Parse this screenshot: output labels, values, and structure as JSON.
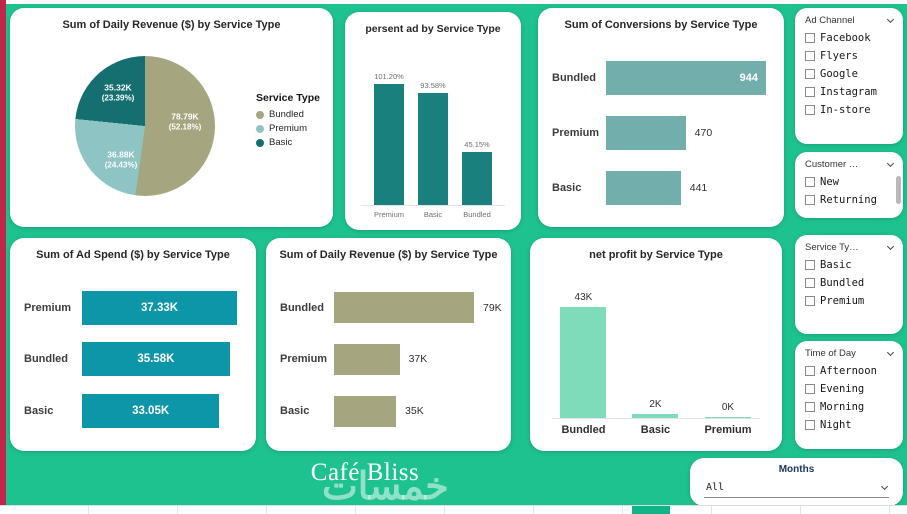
{
  "theme": {
    "background": "#1ec28e",
    "card_bg": "#ffffff",
    "accent_red_strip": "#c02647",
    "sheet_tab_green": "#10b487"
  },
  "chart_data": [
    {
      "id": "daily-revenue-pie",
      "type": "pie",
      "title": "Sum of Daily Revenue ($) by Service Type",
      "legend_title": "Service Type",
      "legend_position": "right",
      "categories": [
        "Bundled",
        "Premium",
        "Basic"
      ],
      "values": [
        78.79,
        36.88,
        35.32
      ],
      "unit": "K",
      "labels": [
        "78.79K",
        "36.88K",
        "35.32K"
      ],
      "pcts": [
        "(52.18%)",
        "(24.43%)",
        "(23.39%)"
      ],
      "pct_values": [
        52.18,
        24.43,
        23.39
      ],
      "colors": [
        "#a5a580",
        "#8ec4c4",
        "#156f71"
      ]
    },
    {
      "id": "persent-ad-bar",
      "type": "bar",
      "orientation": "vertical",
      "title": "persent ad by Service Type",
      "categories": [
        "Premium",
        "Basic",
        "Bundled"
      ],
      "values": [
        101.2,
        93.58,
        45.15
      ],
      "unit": "%",
      "labels": [
        "101.20%",
        "93.58%",
        "45.15%"
      ],
      "color": "#1a807d",
      "ylim": [
        0,
        101.2
      ]
    },
    {
      "id": "conversions-hbar",
      "type": "bar",
      "orientation": "horizontal",
      "title": "Sum of Conversions by Service Type",
      "categories": [
        "Bundled",
        "Premium",
        "Basic"
      ],
      "values": [
        944,
        470,
        441
      ],
      "labels": [
        "944",
        "470",
        "441"
      ],
      "color": "#72aeab",
      "xlim": [
        0,
        944
      ]
    },
    {
      "id": "ad-spend-hbar",
      "type": "bar",
      "orientation": "horizontal",
      "title": "Sum of Ad Spend ($) by Service Type",
      "categories": [
        "Premium",
        "Bundled",
        "Basic"
      ],
      "values": [
        37.33,
        35.58,
        33.05
      ],
      "unit": "K",
      "labels": [
        "37.33K",
        "35.58K",
        "33.05K"
      ],
      "color": "#0d95a8",
      "xlim": [
        0,
        37.33
      ]
    },
    {
      "id": "daily-revenue-hbar",
      "type": "bar",
      "orientation": "horizontal",
      "title": "Sum of Daily Revenue ($) by Service Type",
      "categories": [
        "Bundled",
        "Premium",
        "Basic"
      ],
      "values": [
        79,
        37,
        35
      ],
      "unit": "K",
      "labels": [
        "79K",
        "37K",
        "35K"
      ],
      "color": "#a5a580",
      "xlim": [
        0,
        79
      ]
    },
    {
      "id": "net-profit-bar",
      "type": "bar",
      "orientation": "vertical",
      "title": "net profit by Service Type",
      "categories": [
        "Bundled",
        "Basic",
        "Premium"
      ],
      "values": [
        43,
        2,
        0
      ],
      "unit": "K",
      "labels": [
        "43K",
        "2K",
        "0K"
      ],
      "color": "#7edcba",
      "ylim": [
        0,
        43
      ]
    }
  ],
  "filters": [
    {
      "title": "Ad Channel",
      "options": [
        "Facebook",
        "Flyers",
        "Google",
        "Instagram",
        "In-store"
      ],
      "scrollbar": false
    },
    {
      "title": "Customer …",
      "options": [
        "New",
        "Returning"
      ],
      "scrollbar": true
    },
    {
      "title": "Service Ty…",
      "options": [
        "Basic",
        "Bundled",
        "Premium"
      ],
      "scrollbar": false
    },
    {
      "title": "Time of Day",
      "options": [
        "Afternoon",
        "Evening",
        "Morning",
        "Night"
      ],
      "scrollbar": false
    }
  ],
  "footer": {
    "brand": "Café Bliss",
    "watermark": "خمسات",
    "months_label": "Months",
    "months_value": "All"
  }
}
